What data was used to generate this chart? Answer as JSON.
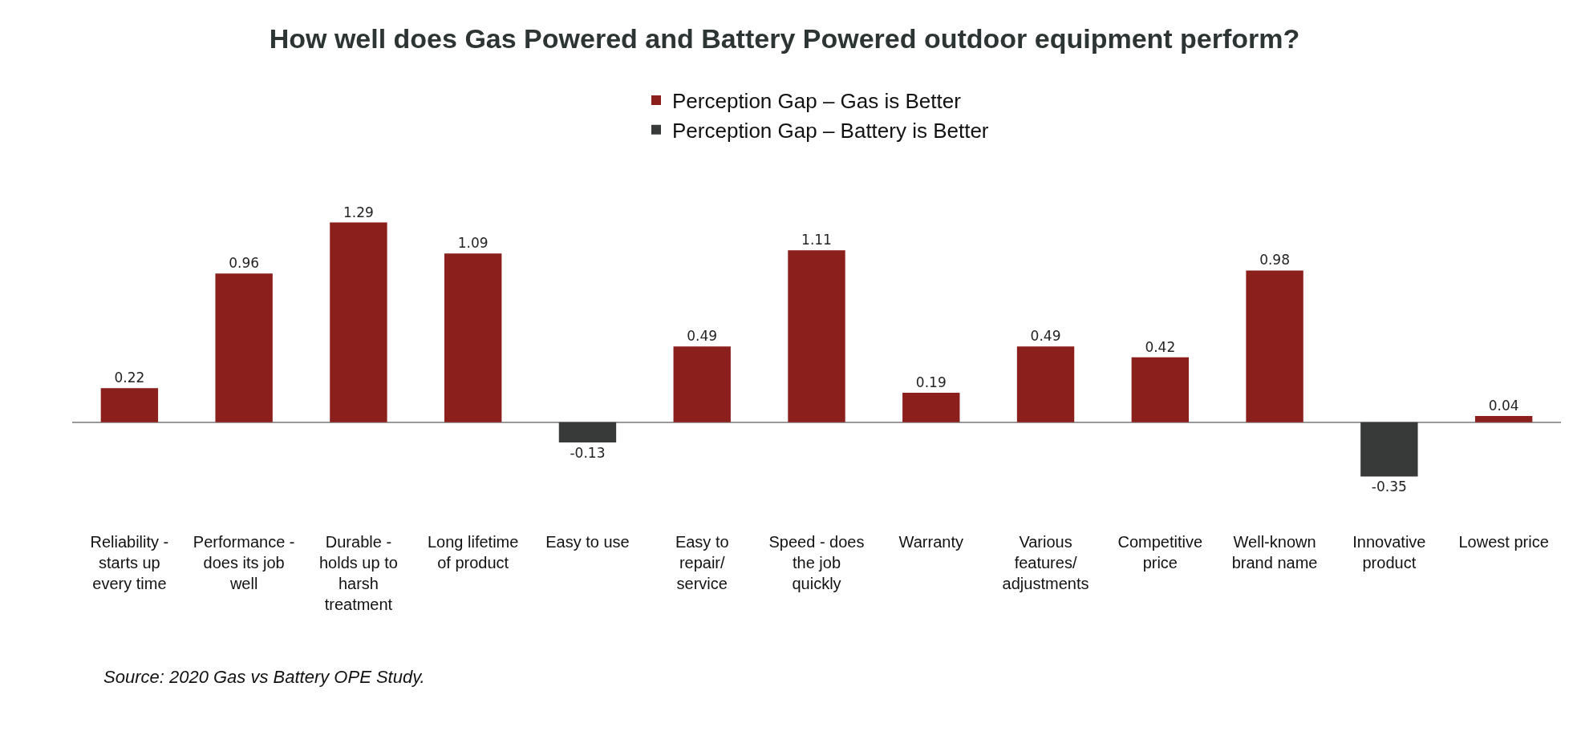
{
  "chart_data": {
    "type": "bar",
    "title": "How well does Gas Powered and Battery Powered outdoor equipment perform?",
    "categories": [
      "Reliability - starts up every time",
      "Performance - does its job well",
      "Durable - holds up to harsh treatment",
      "Long lifetime of product",
      "Easy to use",
      "Easy to repair/ service",
      "Speed - does the job quickly",
      "Warranty",
      "Various features/ adjustments",
      "Competitive price",
      "Well-known brand name",
      "Innovative product",
      "Lowest price"
    ],
    "series": [
      {
        "name": "Perception Gap – Gas is Better",
        "color": "#8b1f1b",
        "values": [
          0.22,
          0.96,
          1.29,
          1.09,
          null,
          0.49,
          1.11,
          0.19,
          0.49,
          0.42,
          0.98,
          null,
          0.04
        ]
      },
      {
        "name": "Perception Gap – Battery is Better",
        "color": "#383a3a",
        "values": [
          null,
          null,
          null,
          null,
          -0.13,
          null,
          null,
          null,
          null,
          null,
          null,
          -0.35,
          null
        ]
      }
    ],
    "data_labels": true,
    "legend": "top",
    "grid": false,
    "annotations": [
      "Source: 2020 Gas vs Battery OPE Study."
    ]
  }
}
